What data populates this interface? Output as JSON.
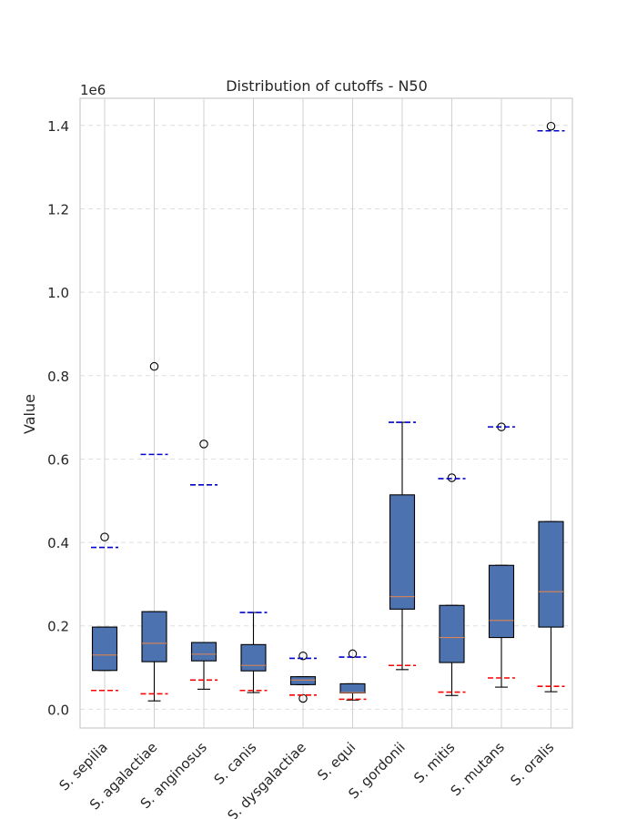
{
  "chart_data": {
    "type": "box",
    "title": "Distribution of cutoffs - N50",
    "ylabel": "Value",
    "xlabel": "",
    "offset_label": "1e6",
    "ylim": [
      -0.045,
      1.465
    ],
    "yticks": [
      0.0,
      0.2,
      0.4,
      0.6,
      0.8,
      1.0,
      1.2,
      1.4
    ],
    "ytick_labels": [
      "0.0",
      "0.2",
      "0.4",
      "0.6",
      "0.8",
      "1.0",
      "1.2",
      "1.4"
    ],
    "grid": true,
    "categories": [
      "S. sepilia",
      "S. agalactiae",
      "S. anginosus",
      "S. canis",
      "S. dysgalactiae",
      "S. equi",
      "S. gordonii",
      "S. mitis",
      "S. mutans",
      "S. oralis"
    ],
    "boxes": [
      {
        "whisker_low": 0.093,
        "q1": 0.093,
        "median": 0.13,
        "q3": 0.197,
        "whisker_high": 0.197,
        "outliers": [
          0.413
        ],
        "lower_cutoff": 0.045,
        "upper_cutoff": 0.388
      },
      {
        "whisker_low": 0.02,
        "q1": 0.114,
        "median": 0.158,
        "q3": 0.234,
        "whisker_high": 0.234,
        "outliers": [
          0.822
        ],
        "lower_cutoff": 0.037,
        "upper_cutoff": 0.611
      },
      {
        "whisker_low": 0.048,
        "q1": 0.116,
        "median": 0.132,
        "q3": 0.16,
        "whisker_high": 0.16,
        "outliers": [
          0.636
        ],
        "lower_cutoff": 0.07,
        "upper_cutoff": 0.538
      },
      {
        "whisker_low": 0.04,
        "q1": 0.092,
        "median": 0.105,
        "q3": 0.155,
        "whisker_high": 0.232,
        "outliers": [],
        "lower_cutoff": 0.045,
        "upper_cutoff": 0.232
      },
      {
        "whisker_low": 0.059,
        "q1": 0.059,
        "median": 0.07,
        "q3": 0.078,
        "whisker_high": 0.078,
        "outliers": [
          0.128,
          0.026
        ],
        "lower_cutoff": 0.034,
        "upper_cutoff": 0.122
      },
      {
        "whisker_low": 0.022,
        "q1": 0.039,
        "median": 0.04,
        "q3": 0.061,
        "whisker_high": 0.061,
        "outliers": [
          0.133
        ],
        "lower_cutoff": 0.024,
        "upper_cutoff": 0.125
      },
      {
        "whisker_low": 0.095,
        "q1": 0.24,
        "median": 0.27,
        "q3": 0.514,
        "whisker_high": 0.688,
        "outliers": [],
        "lower_cutoff": 0.105,
        "upper_cutoff": 0.688
      },
      {
        "whisker_low": 0.033,
        "q1": 0.112,
        "median": 0.172,
        "q3": 0.249,
        "whisker_high": 0.249,
        "outliers": [
          0.555
        ],
        "lower_cutoff": 0.041,
        "upper_cutoff": 0.553
      },
      {
        "whisker_low": 0.053,
        "q1": 0.172,
        "median": 0.213,
        "q3": 0.345,
        "whisker_high": 0.345,
        "outliers": [
          0.677
        ],
        "lower_cutoff": 0.075,
        "upper_cutoff": 0.677
      },
      {
        "whisker_low": 0.042,
        "q1": 0.197,
        "median": 0.282,
        "q3": 0.45,
        "whisker_high": 0.45,
        "outliers": [
          1.398
        ],
        "lower_cutoff": 0.055,
        "upper_cutoff": 1.387
      }
    ],
    "colors": {
      "box_fill": "#4c72b0",
      "median": "#dd8452",
      "lower_cutoff": "#ff0000",
      "upper_cutoff": "#0000cc",
      "grid": "#dddddd",
      "frame": "#cccccc",
      "category_grid": "#d0d0d0"
    }
  }
}
